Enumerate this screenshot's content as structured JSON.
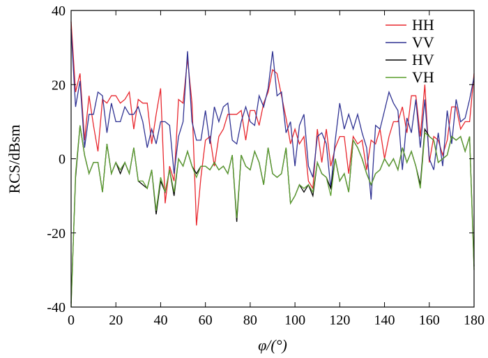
{
  "chart_data": {
    "type": "line",
    "title": "",
    "xlabel": "φ/(°)",
    "ylabel": "RCS/dBsm",
    "xlim": [
      0,
      180
    ],
    "ylim": [
      -40,
      40
    ],
    "xticks": [
      0,
      20,
      40,
      60,
      80,
      100,
      120,
      140,
      160,
      180
    ],
    "yticks": [
      -40,
      -20,
      0,
      20,
      40
    ],
    "grid": false,
    "legend_position": "top-right",
    "series": [
      {
        "name": "HH",
        "color": "#e8262d",
        "x": [
          0,
          2,
          4,
          6,
          8,
          10,
          12,
          14,
          16,
          18,
          20,
          22,
          24,
          26,
          28,
          30,
          32,
          34,
          36,
          38,
          40,
          42,
          44,
          46,
          48,
          50,
          52,
          54,
          56,
          58,
          60,
          62,
          64,
          66,
          68,
          70,
          72,
          74,
          76,
          78,
          80,
          82,
          84,
          86,
          88,
          90,
          92,
          94,
          96,
          98,
          100,
          102,
          104,
          106,
          108,
          110,
          112,
          114,
          116,
          118,
          120,
          122,
          124,
          126,
          128,
          130,
          132,
          134,
          136,
          138,
          140,
          142,
          144,
          146,
          148,
          150,
          152,
          154,
          156,
          158,
          160,
          162,
          164,
          166,
          168,
          170,
          172,
          174,
          176,
          178,
          180
        ],
        "y": [
          37,
          18,
          23,
          5,
          17,
          9,
          2,
          16,
          15,
          17,
          17,
          15,
          16,
          18,
          8,
          16,
          15,
          15,
          4,
          12,
          19,
          -12,
          -2,
          -6,
          16,
          15,
          27,
          15,
          -18,
          -5,
          5,
          6,
          -2,
          6,
          8,
          12,
          12,
          12,
          13,
          5,
          13,
          13,
          9,
          15,
          18,
          24,
          23,
          17,
          11,
          4,
          8,
          4,
          6,
          -6,
          -8,
          8,
          -1,
          8,
          -2,
          3,
          6,
          6,
          -4,
          6,
          4,
          5,
          -3,
          5,
          4,
          8,
          0,
          6,
          10,
          10,
          14,
          7,
          17,
          17,
          6,
          20,
          -1,
          6,
          5,
          1,
          5,
          14,
          14,
          8,
          10,
          10,
          23
        ]
      },
      {
        "name": "VV",
        "color": "#2e3192",
        "x": [
          0,
          2,
          4,
          6,
          8,
          10,
          12,
          14,
          16,
          18,
          20,
          22,
          24,
          26,
          28,
          30,
          32,
          34,
          36,
          38,
          40,
          42,
          44,
          46,
          48,
          50,
          52,
          54,
          56,
          58,
          60,
          62,
          64,
          66,
          68,
          70,
          72,
          74,
          76,
          78,
          80,
          82,
          84,
          86,
          88,
          90,
          92,
          94,
          96,
          98,
          100,
          102,
          104,
          106,
          108,
          110,
          112,
          114,
          116,
          118,
          120,
          122,
          124,
          126,
          128,
          130,
          132,
          134,
          136,
          138,
          140,
          142,
          144,
          146,
          148,
          150,
          152,
          154,
          156,
          158,
          160,
          162,
          164,
          166,
          168,
          170,
          172,
          174,
          176,
          178,
          180
        ],
        "y": [
          35,
          14,
          21,
          3,
          12,
          12,
          18,
          17,
          7,
          15,
          10,
          10,
          14,
          12,
          12,
          14,
          10,
          3,
          8,
          4,
          10,
          10,
          9,
          -4,
          6,
          10,
          29,
          10,
          5,
          5,
          13,
          4,
          14,
          10,
          14,
          15,
          5,
          4,
          10,
          14,
          10,
          9,
          17,
          14,
          19,
          29,
          17,
          18,
          7,
          10,
          -2,
          9,
          12,
          -2,
          -5,
          6,
          7,
          4,
          -8,
          5,
          15,
          8,
          12,
          8,
          12,
          7,
          3,
          -11,
          9,
          8,
          13,
          18,
          15,
          13,
          -3,
          11,
          7,
          16,
          3,
          16,
          0,
          -3,
          7,
          -2,
          13,
          4,
          16,
          10,
          11,
          16,
          22
        ]
      },
      {
        "name": "HV",
        "color": "#000000",
        "x": [
          0,
          2,
          4,
          6,
          8,
          10,
          12,
          14,
          16,
          18,
          20,
          22,
          24,
          26,
          28,
          30,
          32,
          34,
          36,
          38,
          40,
          42,
          44,
          46,
          48,
          50,
          52,
          54,
          56,
          58,
          60,
          62,
          64,
          66,
          68,
          70,
          72,
          74,
          76,
          78,
          80,
          82,
          84,
          86,
          88,
          90,
          92,
          94,
          96,
          98,
          100,
          102,
          104,
          106,
          108,
          110,
          112,
          114,
          116,
          118,
          120,
          122,
          124,
          126,
          128,
          130,
          132,
          134,
          136,
          138,
          140,
          142,
          144,
          146,
          148,
          150,
          152,
          154,
          156,
          158,
          160,
          162,
          164,
          166,
          168,
          170,
          172,
          174,
          176,
          178,
          180
        ],
        "y": [
          -39,
          -5,
          9,
          1,
          -4,
          -1,
          -1,
          -9,
          4,
          -4,
          -1,
          -4,
          -1,
          -4,
          3,
          -6,
          -7,
          -8,
          -3,
          -15,
          -6,
          -9,
          -3,
          -10,
          0,
          -2,
          2,
          -2,
          -4,
          -2,
          -2,
          -3,
          -1,
          -3,
          -2,
          -4,
          1,
          -17,
          1,
          -2,
          -3,
          2,
          -1,
          -7,
          3,
          -4,
          -5,
          -4,
          3,
          -12,
          -10,
          -7,
          -9,
          -7,
          -10,
          -1,
          -4,
          -5,
          -8,
          0,
          -6,
          -4,
          -9,
          5,
          3,
          0,
          -4,
          -7,
          -4,
          -3,
          0,
          -2,
          0,
          -3,
          3,
          -1,
          2,
          -2,
          -7,
          8,
          6,
          5,
          -1,
          0,
          1,
          6,
          5,
          6,
          2,
          6,
          -29
        ]
      },
      {
        "name": "VH",
        "color": "#5b9f2e",
        "x": [
          0,
          2,
          4,
          6,
          8,
          10,
          12,
          14,
          16,
          18,
          20,
          22,
          24,
          26,
          28,
          30,
          32,
          34,
          36,
          38,
          40,
          42,
          44,
          46,
          48,
          50,
          52,
          54,
          56,
          58,
          60,
          62,
          64,
          66,
          68,
          70,
          72,
          74,
          76,
          78,
          80,
          82,
          84,
          86,
          88,
          90,
          92,
          94,
          96,
          98,
          100,
          102,
          104,
          106,
          108,
          110,
          112,
          114,
          116,
          118,
          120,
          122,
          124,
          126,
          128,
          130,
          132,
          134,
          136,
          138,
          140,
          142,
          144,
          146,
          148,
          150,
          152,
          154,
          156,
          158,
          160,
          162,
          164,
          166,
          168,
          170,
          172,
          174,
          176,
          178,
          180
        ],
        "y": [
          -40,
          -4,
          9,
          1,
          -4,
          -1,
          -1,
          -9,
          4,
          -4,
          -1,
          -3,
          -1,
          -4,
          3,
          -6,
          -6,
          -8,
          -3,
          -14,
          -5,
          -9,
          -3,
          -9,
          0,
          -2,
          2,
          -2,
          -5,
          -2,
          -2,
          -3,
          -1,
          -3,
          -2,
          -4,
          1,
          -16,
          1,
          -2,
          -3,
          2,
          -1,
          -7,
          3,
          -4,
          -5,
          -4,
          3,
          -12,
          -10,
          -7,
          -8,
          -7,
          -9,
          -1,
          -4,
          -5,
          -10,
          0,
          -6,
          -4,
          -9,
          5,
          3,
          0,
          -4,
          -7,
          -4,
          -3,
          0,
          -2,
          0,
          -3,
          3,
          -1,
          2,
          -2,
          -8,
          7,
          6,
          5,
          -1,
          0,
          1,
          6,
          5,
          6,
          2,
          6,
          -30
        ]
      }
    ]
  }
}
